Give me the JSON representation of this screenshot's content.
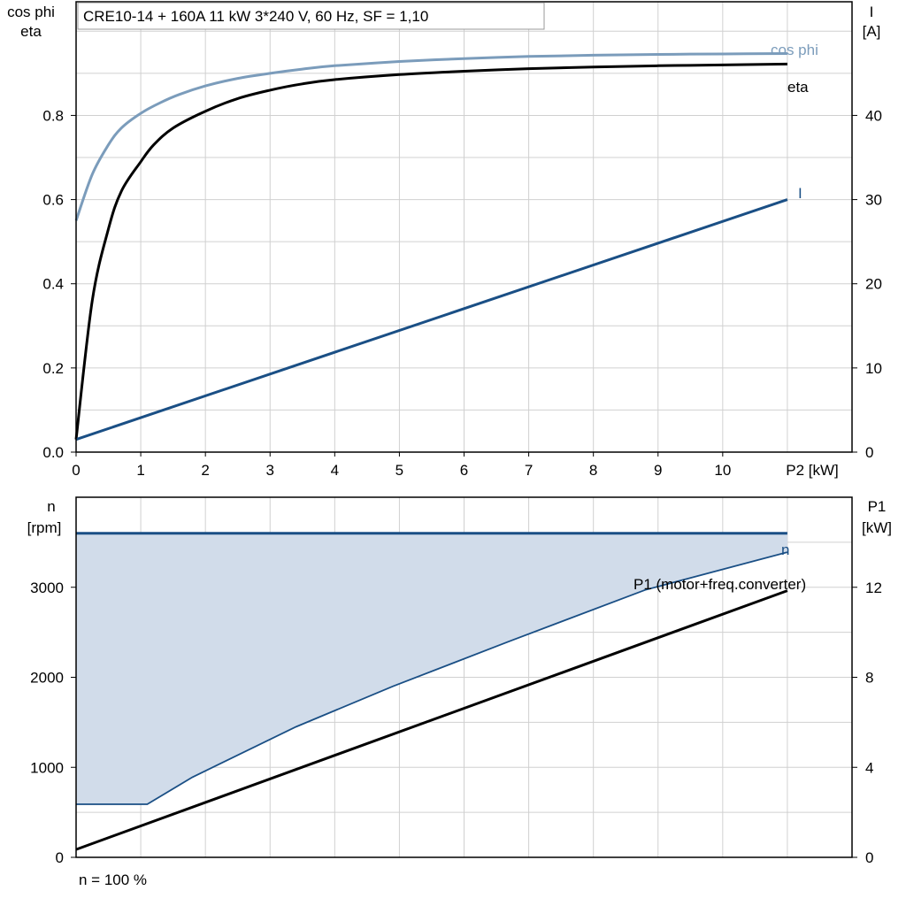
{
  "colors": {
    "cosphi": "#7b9cbb",
    "eta": "#000000",
    "current": "#1a4f85",
    "speed_line": "#1a4f85",
    "speed_fill": "#d1dcea",
    "p1": "#000000",
    "grid": "#d0d0d0"
  },
  "chart_data": [
    {
      "type": "line",
      "title": "CRE10-14 + 160A   11 kW   3*240 V, 60 Hz, SF = 1,10",
      "left_axis_label": [
        "cos phi",
        "eta"
      ],
      "right_axis_label": [
        "I",
        "[A]"
      ],
      "xlabel": "P2 [kW]",
      "x_ticks": [
        "0",
        "1",
        "2",
        "3",
        "4",
        "5",
        "6",
        "7",
        "8",
        "9",
        "10"
      ],
      "x_range": [
        0,
        12
      ],
      "y_left_ticks": [
        "0.0",
        "0.2",
        "0.4",
        "0.6",
        "0.8"
      ],
      "y_left_range": [
        0,
        1.07
      ],
      "y_right_ticks": [
        "0",
        "10",
        "20",
        "30",
        "40"
      ],
      "y_right_range": [
        0,
        53.5
      ],
      "grid": true,
      "series": [
        {
          "name": "cos phi",
          "axis": "left",
          "x": [
            0,
            0.25,
            0.5,
            0.7,
            1.0,
            1.3,
            1.6,
            2.0,
            2.5,
            3.0,
            3.5,
            4.0,
            5.0,
            6.0,
            7.0,
            8.0,
            9.0,
            10.0,
            11.0
          ],
          "y": [
            0.55,
            0.66,
            0.73,
            0.77,
            0.805,
            0.83,
            0.85,
            0.87,
            0.888,
            0.9,
            0.91,
            0.918,
            0.928,
            0.935,
            0.94,
            0.943,
            0.945,
            0.946,
            0.947
          ]
        },
        {
          "name": "eta",
          "axis": "left",
          "x": [
            0,
            0.25,
            0.5,
            0.7,
            1.0,
            1.2,
            1.5,
            2.0,
            2.5,
            3.0,
            3.5,
            4.0,
            5.0,
            6.0,
            7.0,
            8.0,
            9.0,
            10.0,
            11.0
          ],
          "y": [
            0.03,
            0.36,
            0.53,
            0.62,
            0.69,
            0.73,
            0.77,
            0.81,
            0.84,
            0.86,
            0.875,
            0.885,
            0.897,
            0.905,
            0.911,
            0.915,
            0.918,
            0.92,
            0.922
          ]
        },
        {
          "name": "I",
          "axis": "right",
          "x": [
            0,
            11.0
          ],
          "y": [
            1.5,
            30
          ]
        }
      ]
    },
    {
      "type": "line",
      "left_axis_label": [
        "n",
        "[rpm]"
      ],
      "right_axis_label": [
        "P1",
        "[kW]"
      ],
      "x_range": [
        0,
        12
      ],
      "y_left_ticks": [
        "0",
        "1000",
        "2000",
        "3000"
      ],
      "y_left_range": [
        0,
        4000
      ],
      "y_right_ticks": [
        "0",
        "4",
        "8",
        "12"
      ],
      "y_right_range": [
        0,
        16
      ],
      "grid": true,
      "footer": "n = 100 %",
      "series": [
        {
          "name": "n",
          "axis": "left",
          "x": [
            0,
            1.1,
            1.8,
            3.4,
            4.9,
            6.7,
            8.8,
            11.0
          ],
          "y": [
            590,
            590,
            890,
            1450,
            1900,
            2400,
            2970,
            3390
          ]
        },
        {
          "name": "",
          "axis": "left",
          "x": [
            0,
            11.0
          ],
          "y": [
            3600,
            3600
          ]
        },
        {
          "name": "P1 (motor+freq.converter)",
          "axis": "right",
          "x": [
            0,
            11.0
          ],
          "y": [
            0.35,
            11.85
          ]
        }
      ]
    }
  ]
}
